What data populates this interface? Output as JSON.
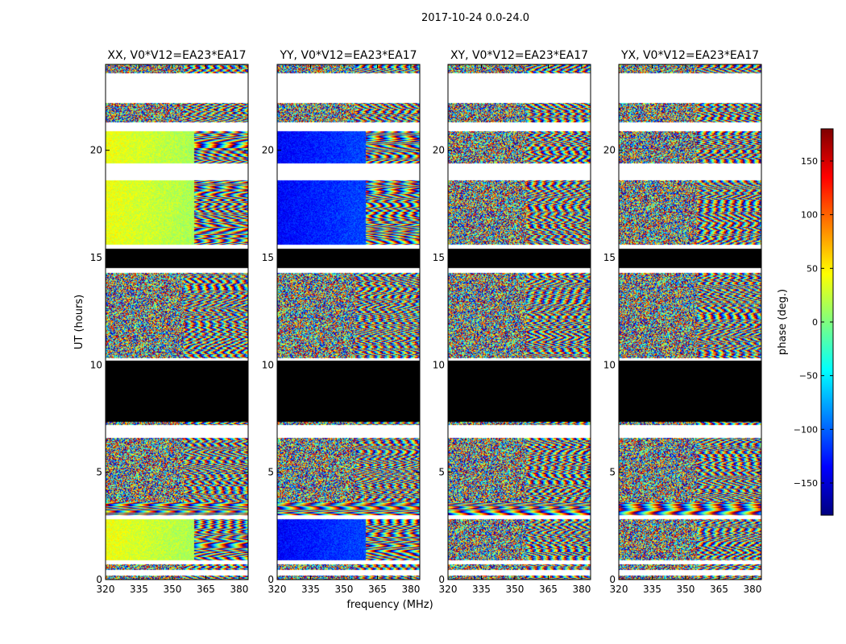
{
  "figure": {
    "suptitle": "2017-10-24 0.0-24.0"
  },
  "chart_data": {
    "type": "heatmap",
    "xlabel": "frequency (MHz)",
    "ylabel": "UT (hours)",
    "xlim": [
      320,
      384
    ],
    "ylim": [
      0,
      24
    ],
    "xticks": [
      320,
      335,
      350,
      365,
      380
    ],
    "yticks": [
      0,
      5,
      10,
      15,
      20
    ],
    "colorbar": {
      "label": "phase (deg.)",
      "range": [
        -180,
        180
      ],
      "ticks": [
        -150,
        -100,
        -50,
        0,
        50,
        100,
        150
      ],
      "colormap": "jet",
      "colors": [
        "#00007f",
        "#0000ff",
        "#007fff",
        "#00ffff",
        "#7fff7f",
        "#ffff00",
        "#ff7f00",
        "#ff0000",
        "#7f0000"
      ]
    },
    "flagged_color": "#000000",
    "panels": [
      {
        "title": "XX, V0*V12=EA23*EA17",
        "polarization": "XX",
        "base_phase": 40,
        "ramp_phase": 15
      },
      {
        "title": "YY, V0*V12=EA23*EA17",
        "polarization": "YY",
        "base_phase": -135,
        "ramp_phase": -110
      },
      {
        "title": "XY, V0*V12=EA23*EA17",
        "polarization": "XY",
        "base_phase": null,
        "ramp_phase": null
      },
      {
        "title": "YX, V0*V12=EA23*EA17",
        "polarization": "YX",
        "base_phase": null,
        "ramp_phase": null
      }
    ],
    "time_segments": [
      {
        "start": 0.0,
        "end": 0.2,
        "state": "noise"
      },
      {
        "start": 0.2,
        "end": 0.45,
        "state": "empty"
      },
      {
        "start": 0.45,
        "end": 0.7,
        "state": "noise"
      },
      {
        "start": 0.7,
        "end": 0.9,
        "state": "empty"
      },
      {
        "start": 0.9,
        "end": 2.8,
        "state": "coherent"
      },
      {
        "start": 2.8,
        "end": 3.0,
        "state": "empty"
      },
      {
        "start": 3.0,
        "end": 3.6,
        "state": "fringe"
      },
      {
        "start": 3.6,
        "end": 6.6,
        "state": "noise"
      },
      {
        "start": 6.6,
        "end": 7.2,
        "state": "empty"
      },
      {
        "start": 7.2,
        "end": 7.35,
        "state": "noise"
      },
      {
        "start": 7.35,
        "end": 10.2,
        "state": "flagged"
      },
      {
        "start": 10.2,
        "end": 10.3,
        "state": "empty"
      },
      {
        "start": 10.3,
        "end": 14.3,
        "state": "noise"
      },
      {
        "start": 14.3,
        "end": 14.5,
        "state": "empty"
      },
      {
        "start": 14.5,
        "end": 15.4,
        "state": "flagged"
      },
      {
        "start": 15.4,
        "end": 15.6,
        "state": "empty"
      },
      {
        "start": 15.6,
        "end": 18.6,
        "state": "coherent"
      },
      {
        "start": 18.6,
        "end": 19.4,
        "state": "empty"
      },
      {
        "start": 19.4,
        "end": 20.9,
        "state": "coherent"
      },
      {
        "start": 20.9,
        "end": 21.3,
        "state": "empty"
      },
      {
        "start": 21.3,
        "end": 22.2,
        "state": "noise"
      },
      {
        "start": 22.2,
        "end": 23.6,
        "state": "empty"
      },
      {
        "start": 23.6,
        "end": 24.0,
        "state": "noise"
      }
    ]
  }
}
